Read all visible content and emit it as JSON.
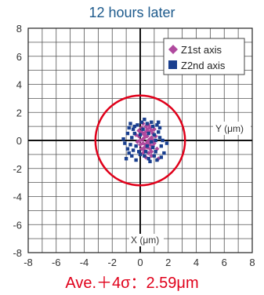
{
  "chart_data": {
    "type": "scatter",
    "title": "12 hours later",
    "xlim": [
      -8,
      8
    ],
    "ylim": [
      -8,
      8
    ],
    "xticks": [
      "-8",
      "-6",
      "-4",
      "-2",
      "0",
      "2",
      "4",
      "6",
      "8"
    ],
    "yticks": [
      "8",
      "6",
      "4",
      "2",
      "0",
      "-2",
      "-4",
      "-6",
      "-8"
    ],
    "x_axis_label": "X (μm)",
    "y_axis_label": "Y (μm)",
    "grid": true,
    "legend_position": "top-right",
    "circle": {
      "center": [
        0,
        0
      ],
      "radius": 3.2,
      "color": "#e0001a"
    },
    "series": [
      {
        "name": "Z1st axis",
        "marker": "diamond",
        "color": "#b04a9e",
        "points": [
          [
            0.2,
            0.1
          ],
          [
            0.4,
            0.3
          ],
          [
            0.6,
            -0.2
          ],
          [
            0.3,
            -0.5
          ],
          [
            0.1,
            0.6
          ],
          [
            0.8,
            0.2
          ],
          [
            0.5,
            0.8
          ],
          [
            -0.1,
            0.3
          ],
          [
            0.7,
            -0.6
          ],
          [
            0.9,
            0.5
          ],
          [
            0.2,
            -0.9
          ],
          [
            0.4,
            1.0
          ],
          [
            0.6,
            0.0
          ],
          [
            1.0,
            -0.2
          ],
          [
            0.0,
            -0.3
          ],
          [
            0.3,
            0.4
          ],
          [
            0.5,
            -0.1
          ],
          [
            0.8,
            -0.8
          ],
          [
            0.1,
            0.9
          ],
          [
            0.6,
            0.6
          ],
          [
            -0.2,
            -0.1
          ],
          [
            1.1,
            0.3
          ],
          [
            0.4,
            -0.3
          ],
          [
            0.2,
            0.5
          ],
          [
            0.7,
            0.9
          ],
          [
            0.9,
            -0.4
          ],
          [
            0.3,
            -0.7
          ],
          [
            0.5,
            0.3
          ],
          [
            0.0,
            0.0
          ],
          [
            0.8,
            0.7
          ],
          [
            1.2,
            -0.6
          ],
          [
            0.6,
            -0.9
          ],
          [
            -0.1,
            0.7
          ],
          [
            0.4,
            0.6
          ],
          [
            0.2,
            -0.2
          ],
          [
            1.0,
            0.8
          ],
          [
            0.5,
            -0.5
          ],
          [
            0.7,
            0.1
          ],
          [
            0.3,
            0.2
          ],
          [
            0.9,
            0.0
          ],
          [
            0.1,
            -0.6
          ],
          [
            0.6,
            1.1
          ],
          [
            1.3,
            -1.3
          ],
          [
            0.8,
            -1.1
          ],
          [
            0.4,
            -1.2
          ],
          [
            0.2,
            1.2
          ],
          [
            -0.3,
            0.4
          ],
          [
            0.7,
            -0.3
          ]
        ]
      },
      {
        "name": "Z2nd axis",
        "marker": "square",
        "color": "#1a3f8f",
        "points": [
          [
            -0.3,
            -0.4
          ],
          [
            0.9,
            1.0
          ],
          [
            1.4,
            0.2
          ],
          [
            -0.5,
            0.8
          ],
          [
            0.6,
            -1.3
          ],
          [
            1.2,
            1.1
          ],
          [
            -0.7,
            -0.3
          ],
          [
            0.1,
            1.3
          ],
          [
            1.0,
            -1.1
          ],
          [
            -0.6,
            0.2
          ],
          [
            0.3,
            -1.1
          ],
          [
            1.5,
            -0.4
          ],
          [
            -0.4,
            1.0
          ],
          [
            0.8,
            1.3
          ],
          [
            -0.8,
            -0.9
          ],
          [
            1.1,
            -0.8
          ],
          [
            0.0,
            -1.0
          ],
          [
            1.3,
            0.6
          ],
          [
            -0.2,
            1.1
          ],
          [
            0.5,
            1.2
          ],
          [
            -0.9,
            0.5
          ],
          [
            1.6,
            0.0
          ],
          [
            0.4,
            -0.8
          ],
          [
            -0.5,
            -0.7
          ],
          [
            1.0,
            0.4
          ],
          [
            -1.0,
            -1.3
          ],
          [
            1.7,
            -0.9
          ],
          [
            0.2,
            0.8
          ],
          [
            -0.3,
            -1.4
          ],
          [
            1.2,
            -1.4
          ],
          [
            -0.7,
            1.2
          ],
          [
            0.9,
            -0.5
          ],
          [
            -1.1,
            -0.2
          ],
          [
            1.4,
            0.9
          ],
          [
            0.6,
            0.5
          ],
          [
            -0.4,
            0.5
          ],
          [
            0.0,
            0.4
          ],
          [
            1.1,
            0.0
          ],
          [
            -0.8,
            0.9
          ],
          [
            0.7,
            -1.5
          ],
          [
            1.9,
            -0.2
          ],
          [
            -0.6,
            -1.1
          ],
          [
            0.3,
            1.5
          ],
          [
            1.5,
            -1.2
          ],
          [
            -1.2,
            0.1
          ],
          [
            0.8,
            -0.1
          ],
          [
            -0.1,
            -0.8
          ],
          [
            1.3,
            1.3
          ],
          [
            0.5,
            -0.4
          ],
          [
            -0.9,
            -0.6
          ]
        ]
      }
    ],
    "annotation": "Ave.＋4σ：2.59μm"
  }
}
